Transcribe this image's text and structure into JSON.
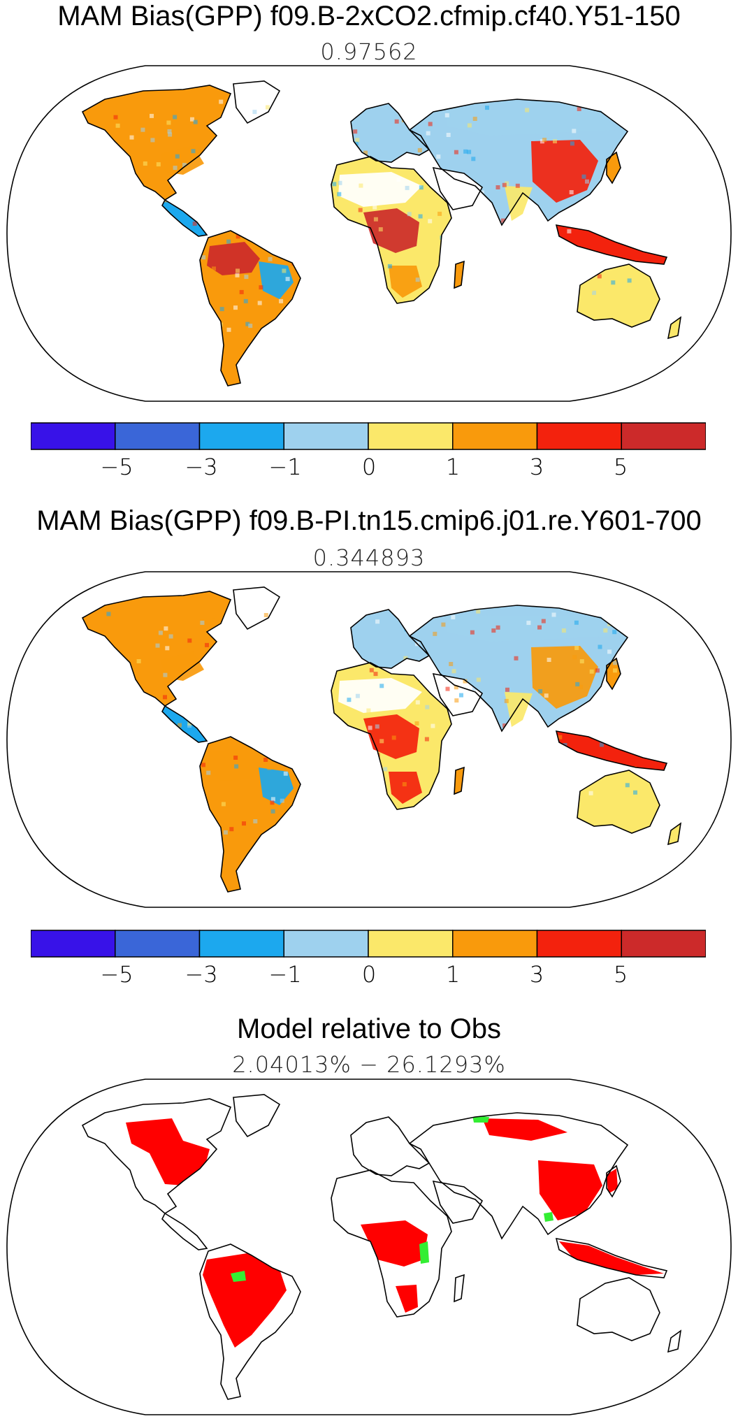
{
  "panels": [
    {
      "title": "MAM Bias(GPP) f09.B-2xCO2.cfmip.cf40.Y51-150",
      "subtitle": "0.97562",
      "colorbar": {
        "colors": [
          "#3812e8",
          "#3a66d8",
          "#1ca8ee",
          "#9ed1ee",
          "#fbe86a",
          "#f99a0c",
          "#f3220d",
          "#cc2a2a"
        ],
        "tick_labels": [
          "−5",
          "−3",
          "−1",
          "0",
          "1",
          "3",
          "5"
        ]
      },
      "regions": {
        "north_america": "orange",
        "amazon": "darkred",
        "central_africa": "darkred",
        "east_asia": "red",
        "sahara": "white",
        "australia": "yellow",
        "siberia": "lightblue"
      }
    },
    {
      "title": "MAM Bias(GPP) f09.B-PI.tn15.cmip6.j01.re.Y601-700",
      "subtitle": "0.344893",
      "colorbar": {
        "colors": [
          "#3812e8",
          "#3a66d8",
          "#1ca8ee",
          "#9ed1ee",
          "#fbe86a",
          "#f99a0c",
          "#f3220d",
          "#cc2a2a"
        ],
        "tick_labels": [
          "−5",
          "−3",
          "−1",
          "0",
          "1",
          "3",
          "5"
        ]
      },
      "regions": {
        "north_america": "orange",
        "amazon": "orange",
        "central_africa": "red",
        "east_asia": "orange",
        "sahara": "white",
        "australia": "yellow",
        "siberia": "lightblue"
      }
    },
    {
      "title": "Model relative to Obs",
      "subtitle": "2.04013% − 26.1293%",
      "mask_colors": {
        "worse": "#ff0000",
        "better": "#33ee33"
      }
    }
  ]
}
